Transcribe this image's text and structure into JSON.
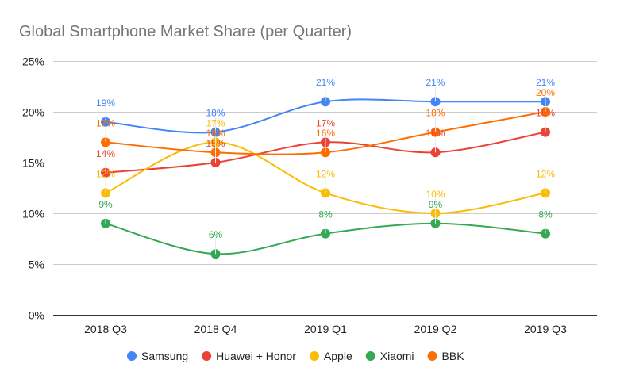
{
  "chart_data": {
    "type": "line",
    "title": "Global Smartphone Market Share (per Quarter)",
    "xlabel": "",
    "ylabel": "",
    "categories": [
      "2018 Q3",
      "2018 Q4",
      "2019 Q1",
      "2019 Q2",
      "2019 Q3"
    ],
    "ylim": [
      0,
      25
    ],
    "yticks": [
      0,
      5,
      10,
      15,
      20,
      25
    ],
    "ytick_labels": [
      "0%",
      "5%",
      "10%",
      "15%",
      "20%",
      "25%"
    ],
    "grid": true,
    "smooth": true,
    "legend_position": "bottom",
    "series": [
      {
        "name": "Samsung",
        "color": "#4285f4",
        "values": [
          19,
          18,
          21,
          21,
          21
        ],
        "labels": [
          "19%",
          "18%",
          "21%",
          "21%",
          "21%"
        ]
      },
      {
        "name": "Huawei + Honor",
        "color": "#ea4335",
        "values": [
          14,
          15,
          17,
          16,
          18
        ],
        "labels": [
          "14%",
          "15%",
          "17%",
          "16%",
          "18%"
        ]
      },
      {
        "name": "Apple",
        "color": "#fbbc04",
        "values": [
          12,
          17,
          12,
          10,
          12
        ],
        "labels": [
          "12%",
          "17%",
          "12%",
          "10%",
          "12%"
        ]
      },
      {
        "name": "Xiaomi",
        "color": "#34a853",
        "values": [
          9,
          6,
          8,
          9,
          8
        ],
        "labels": [
          "9%",
          "6%",
          "8%",
          "9%",
          "8%"
        ]
      },
      {
        "name": "BBK",
        "color": "#ff6d01",
        "values": [
          17,
          16,
          16,
          18,
          20
        ],
        "labels": [
          "17%",
          "16%",
          "16%",
          "18%",
          "20%"
        ]
      }
    ]
  }
}
